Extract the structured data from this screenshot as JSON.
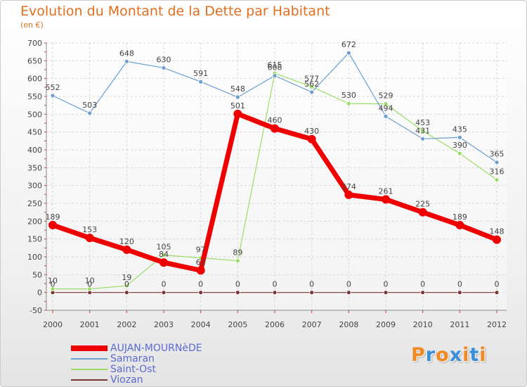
{
  "chart_data": {
    "type": "line",
    "title": "Evolution du Montant de la Dette par Habitant",
    "subtitle": "(en €)",
    "x": [
      "2000",
      "2001",
      "2002",
      "2003",
      "2004",
      "2005",
      "2006",
      "2007",
      "2008",
      "2009",
      "2010",
      "2011",
      "2012"
    ],
    "ylim": [
      -50,
      700
    ],
    "yticks": [
      -50,
      0,
      50,
      100,
      150,
      200,
      250,
      300,
      350,
      400,
      450,
      500,
      550,
      600,
      650,
      700
    ],
    "grid": true,
    "legend_position": "bottom-left",
    "series": [
      {
        "name": "AUJAN-MOURNèDE",
        "color": "#ee0000",
        "values": [
          189,
          153,
          120,
          84,
          62,
          501,
          460,
          430,
          274,
          261,
          225,
          189,
          148
        ],
        "labels": [
          "189",
          "153",
          "120",
          "84",
          "62",
          "501",
          "460",
          "430",
          "274",
          "261",
          "225",
          "189",
          "148"
        ]
      },
      {
        "name": "Samaran",
        "color": "#6a9fd0",
        "values": [
          552,
          503,
          648,
          630,
          591,
          548,
          608,
          562,
          672,
          494,
          431,
          435,
          365
        ],
        "labels": [
          "552",
          "503",
          "648",
          "630",
          "591",
          "548",
          "608",
          "562",
          "672",
          "494",
          "431",
          "435",
          "365"
        ]
      },
      {
        "name": "Saint-Ost",
        "color": "#99dd66",
        "values": [
          10,
          10,
          19,
          105,
          97,
          89,
          615,
          577,
          530,
          529,
          453,
          390,
          316
        ],
        "labels": [
          "10",
          "10",
          "19",
          "105",
          "97",
          "89",
          "615",
          "577",
          "530",
          "529",
          "453",
          "390",
          "316"
        ]
      },
      {
        "name": "Viozan",
        "color": "#7a3535",
        "values": [
          0,
          0,
          0,
          0,
          0,
          0,
          0,
          0,
          0,
          0,
          0,
          0,
          0
        ],
        "labels": [
          "0",
          "0",
          "0",
          "0",
          "0",
          "0",
          "0",
          "0",
          "0",
          "0",
          "0",
          "0",
          "0"
        ]
      }
    ]
  },
  "logo": {
    "letters": [
      "P",
      "r",
      "o",
      "x",
      "i",
      "t",
      "i"
    ],
    "colors": [
      "#f08a20",
      "#3a8fd8",
      "#f08a20",
      "#3a8fd8",
      "#f08a20",
      "#3a8fd8",
      "#f08a20"
    ]
  }
}
